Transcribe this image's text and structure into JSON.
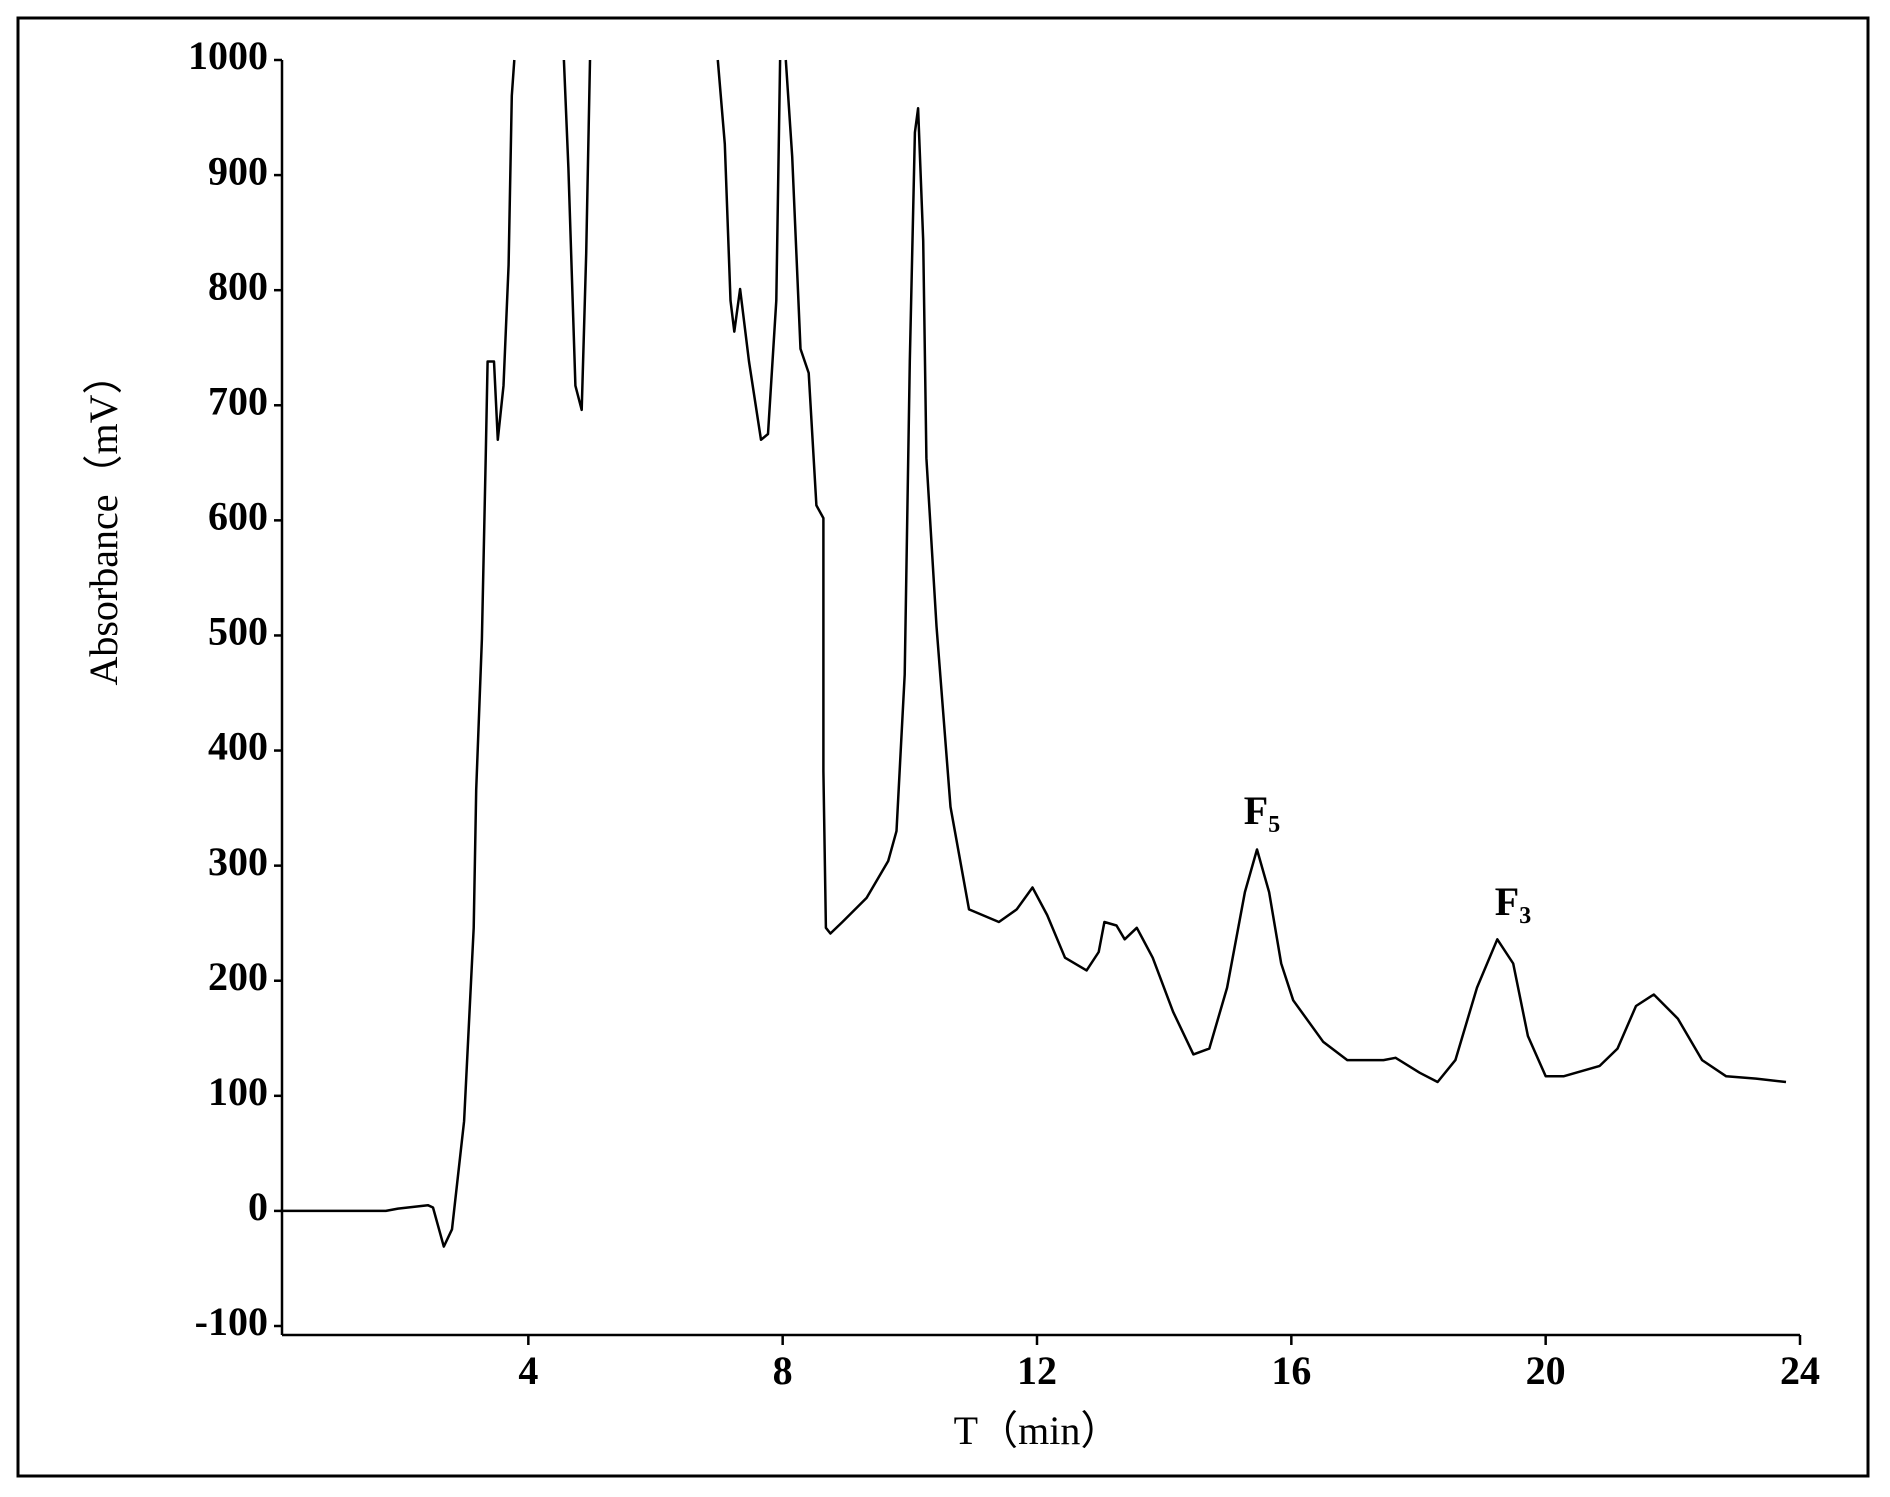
{
  "chart_data": {
    "type": "line",
    "x_label": "T（min）",
    "y_label": "Absorbance（mV）",
    "annotations": [
      "F₅",
      "F₃"
    ],
    "xlim": [
      0,
      24
    ],
    "xticks": [
      4,
      8,
      12,
      16,
      20,
      24
    ],
    "ylim": [
      -100,
      1000
    ],
    "yticks": [
      -100,
      0,
      100,
      200,
      300,
      400,
      500,
      600,
      700,
      800,
      900,
      1000
    ],
    "grid": false,
    "series": [
      {
        "color": "#000000",
        "x": [
          0.1,
          1.76,
          1.95,
          2.42,
          2.5,
          2.67,
          2.8,
          2.99,
          3.14,
          3.18,
          3.27,
          3.33,
          3.36,
          3.46,
          3.52,
          3.61,
          3.69,
          3.74,
          3.78,
          null,
          4.56,
          4.63,
          4.74,
          4.84,
          4.91,
          4.97,
          null,
          6.98,
          7.09,
          7.18,
          7.24,
          7.33,
          7.47,
          7.66,
          7.77,
          7.9,
          7.96,
          null,
          8.05,
          8.15,
          8.28,
          8.41,
          8.53,
          8.64,
          8.64,
          8.68,
          8.75,
          8.94,
          9.32,
          9.66,
          9.79,
          9.92,
          10.0,
          10.08,
          10.13,
          10.21,
          10.26,
          10.42,
          10.64,
          10.93,
          11.4,
          11.68,
          11.93,
          12.16,
          12.44,
          12.78,
          12.97,
          13.06,
          13.25,
          13.38,
          13.57,
          13.82,
          14.14,
          14.46,
          14.71,
          14.99,
          15.27,
          15.46,
          15.65,
          15.84,
          16.03,
          16.5,
          16.88,
          17.45,
          17.64,
          18.02,
          18.3,
          18.58,
          18.92,
          19.24,
          19.49,
          19.72,
          20.0,
          20.28,
          20.85,
          21.13,
          21.42,
          21.7,
          22.08,
          22.46,
          22.84,
          23.31,
          23.78
        ],
        "values": [
          0,
          0,
          2,
          5,
          3,
          -31,
          -16,
          78,
          246,
          366,
          497,
          654,
          738,
          738,
          670,
          717,
          822,
          969,
          1000,
          null,
          1000,
          906,
          717,
          696,
          832,
          1000,
          null,
          1000,
          927,
          791,
          764,
          801,
          738,
          670,
          675,
          791,
          1000,
          null,
          1000,
          916,
          749,
          728,
          613,
          602,
          382,
          246,
          241,
          251,
          272,
          304,
          330,
          466,
          738,
          937,
          958,
          843,
          654,
          508,
          351,
          262,
          251,
          262,
          281,
          257,
          220,
          209,
          225,
          251,
          248,
          236,
          246,
          220,
          173,
          136,
          141,
          194,
          277,
          314,
          277,
          215,
          183,
          147,
          131,
          131,
          133,
          120,
          112,
          131,
          194,
          236,
          215,
          152,
          117,
          117,
          126,
          141,
          178,
          188,
          167,
          131,
          117,
          115,
          112
        ]
      }
    ]
  }
}
